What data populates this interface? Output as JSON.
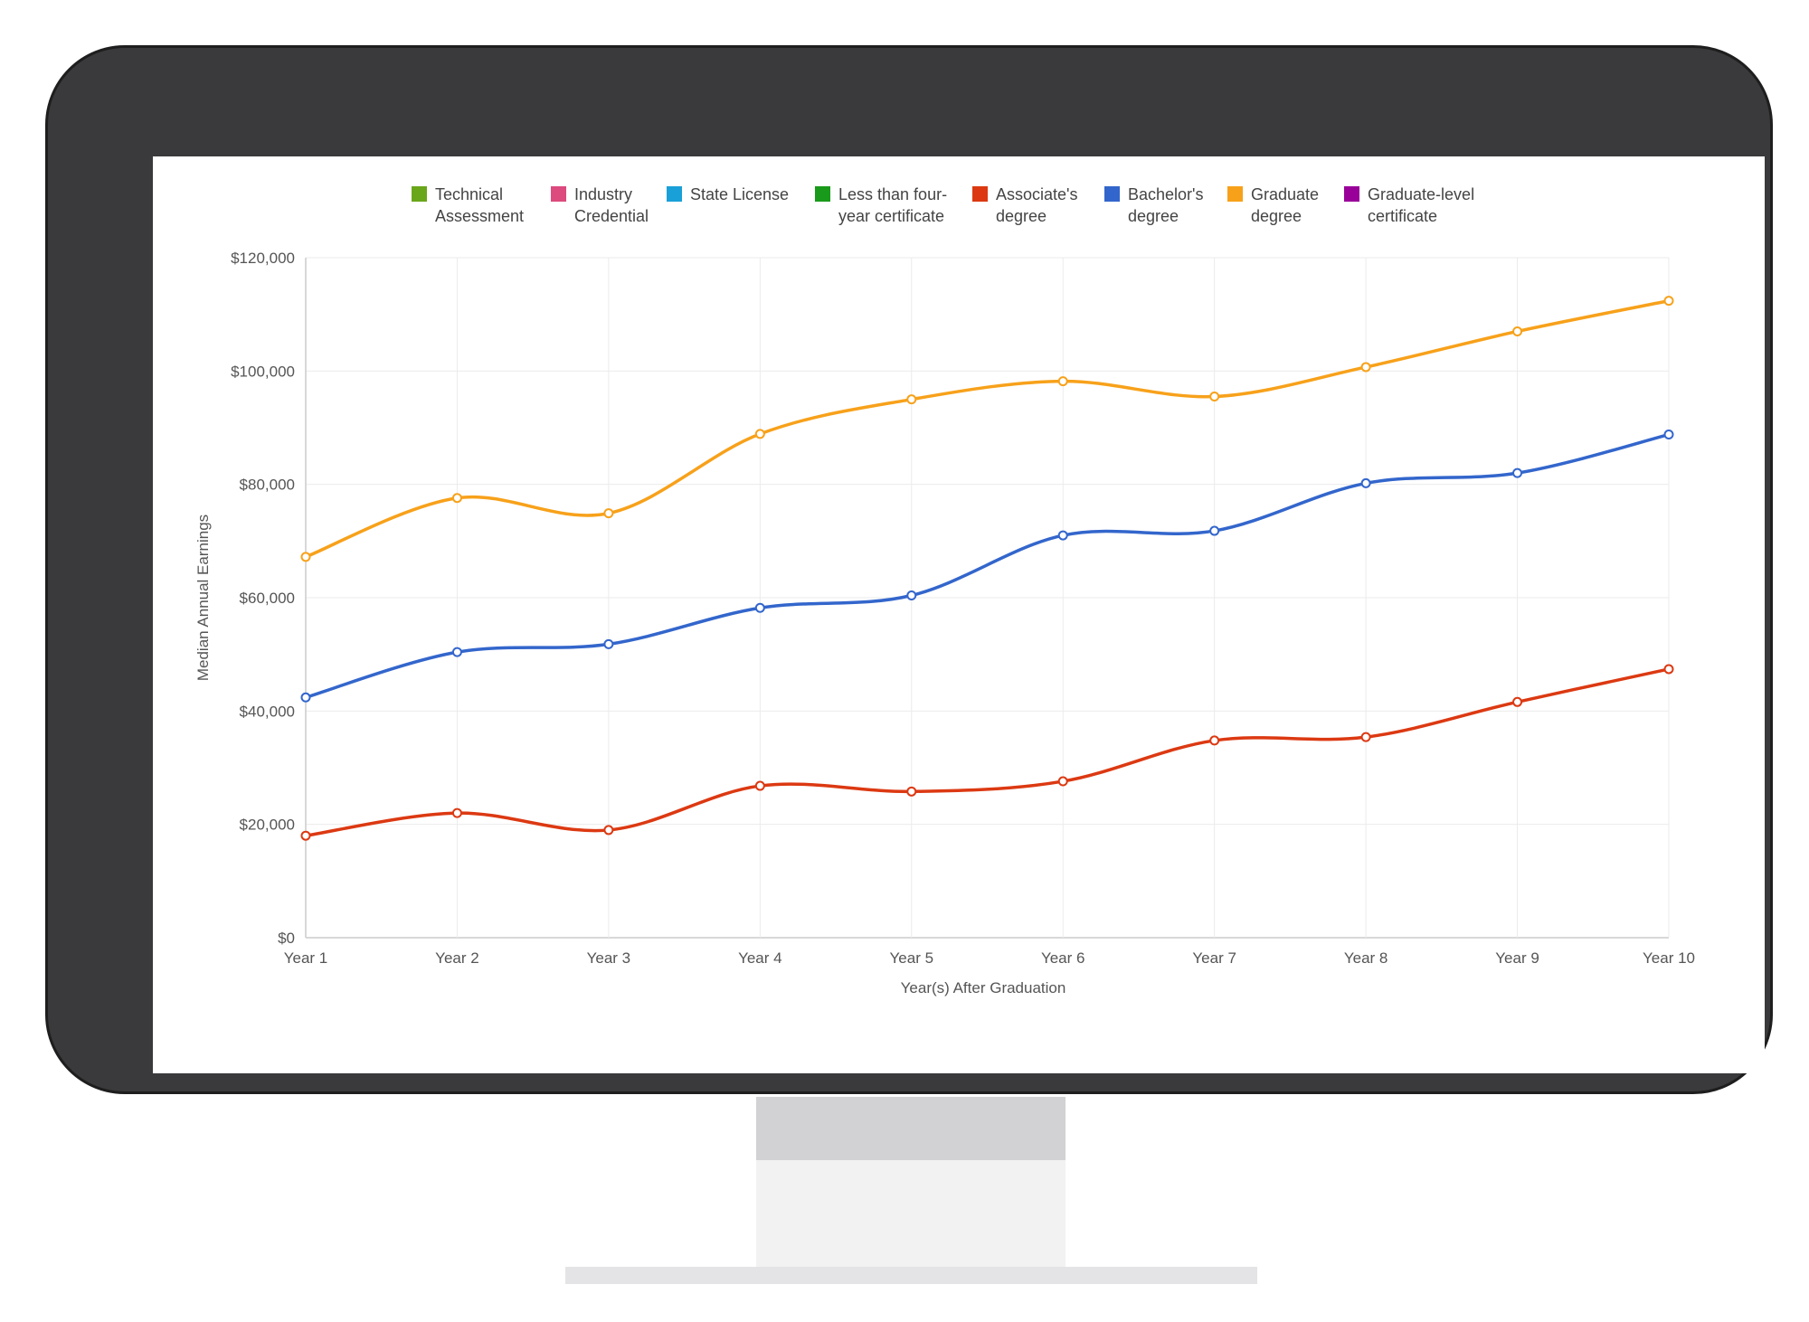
{
  "chart_data": {
    "type": "line",
    "title": "",
    "xlabel": "Year(s) After Graduation",
    "ylabel": "Median Annual Earnings",
    "categories": [
      "Year 1",
      "Year 2",
      "Year 3",
      "Year 4",
      "Year 5",
      "Year 6",
      "Year 7",
      "Year 8",
      "Year 9",
      "Year 10"
    ],
    "ylim": [
      0,
      120000
    ],
    "yticks": [
      {
        "value": 0,
        "label": "$0"
      },
      {
        "value": 20000,
        "label": "$20,000"
      },
      {
        "value": 40000,
        "label": "$40,000"
      },
      {
        "value": 60000,
        "label": "$60,000"
      },
      {
        "value": 80000,
        "label": "$80,000"
      },
      {
        "value": 100000,
        "label": "$100,000"
      },
      {
        "value": 120000,
        "label": "$120,000"
      }
    ],
    "grid": true,
    "legend_position": "top",
    "legend": [
      {
        "label": "Technical\nAssessment",
        "color": "#6aa61a"
      },
      {
        "label": "Industry\nCredential",
        "color": "#dc4a7e"
      },
      {
        "label": "State License",
        "color": "#1aa0d8"
      },
      {
        "label": "Less than four-\nyear certificate",
        "color": "#1a9a1a"
      },
      {
        "label": "Associate's\ndegree",
        "color": "#dc3912"
      },
      {
        "label": "Bachelor's\ndegree",
        "color": "#3366cc"
      },
      {
        "label": "Graduate\ndegree",
        "color": "#f7a11a"
      },
      {
        "label": "Graduate-level\ncertificate",
        "color": "#990099"
      }
    ],
    "series": [
      {
        "name": "Associate's degree",
        "color": "#dc3912",
        "values": [
          18000,
          22000,
          19000,
          26800,
          25800,
          27600,
          34800,
          35400,
          41600,
          47400
        ]
      },
      {
        "name": "Bachelor's degree",
        "color": "#3366cc",
        "values": [
          42400,
          50400,
          51800,
          58200,
          60400,
          71000,
          71800,
          80200,
          82000,
          88800
        ]
      },
      {
        "name": "Graduate degree",
        "color": "#f7a11a",
        "values": [
          67200,
          77600,
          74900,
          88900,
          95000,
          98200,
          95500,
          100700,
          107000,
          112400
        ]
      }
    ]
  }
}
